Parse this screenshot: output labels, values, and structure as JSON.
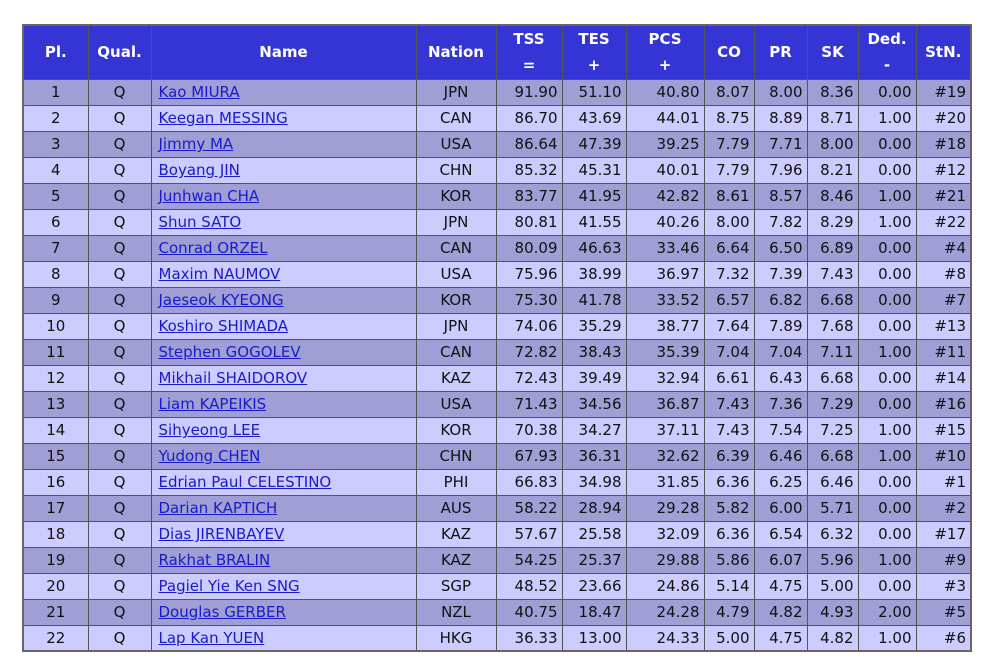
{
  "table": {
    "header": [
      [
        "Pl."
      ],
      [
        "Qual."
      ],
      [
        "Name"
      ],
      [
        "Nation"
      ],
      [
        "TSS",
        "="
      ],
      [
        "TES",
        "+"
      ],
      [
        "PCS",
        "+"
      ],
      [
        "CO"
      ],
      [
        "PR"
      ],
      [
        "SK"
      ],
      [
        "Ded.",
        "-"
      ],
      [
        "StN."
      ]
    ],
    "rows": [
      [
        "1",
        "Q",
        "Kao MIURA",
        "JPN",
        "91.90",
        "51.10",
        "40.80",
        "8.07",
        "8.00",
        "8.36",
        "0.00",
        "#19"
      ],
      [
        "2",
        "Q",
        "Keegan MESSING",
        "CAN",
        "86.70",
        "43.69",
        "44.01",
        "8.75",
        "8.89",
        "8.71",
        "1.00",
        "#20"
      ],
      [
        "3",
        "Q",
        "Jimmy MA",
        "USA",
        "86.64",
        "47.39",
        "39.25",
        "7.79",
        "7.71",
        "8.00",
        "0.00",
        "#18"
      ],
      [
        "4",
        "Q",
        "Boyang JIN",
        "CHN",
        "85.32",
        "45.31",
        "40.01",
        "7.79",
        "7.96",
        "8.21",
        "0.00",
        "#12"
      ],
      [
        "5",
        "Q",
        "Junhwan CHA",
        "KOR",
        "83.77",
        "41.95",
        "42.82",
        "8.61",
        "8.57",
        "8.46",
        "1.00",
        "#21"
      ],
      [
        "6",
        "Q",
        "Shun SATO",
        "JPN",
        "80.81",
        "41.55",
        "40.26",
        "8.00",
        "7.82",
        "8.29",
        "1.00",
        "#22"
      ],
      [
        "7",
        "Q",
        "Conrad ORZEL",
        "CAN",
        "80.09",
        "46.63",
        "33.46",
        "6.64",
        "6.50",
        "6.89",
        "0.00",
        "#4"
      ],
      [
        "8",
        "Q",
        "Maxim NAUMOV",
        "USA",
        "75.96",
        "38.99",
        "36.97",
        "7.32",
        "7.39",
        "7.43",
        "0.00",
        "#8"
      ],
      [
        "9",
        "Q",
        "Jaeseok KYEONG",
        "KOR",
        "75.30",
        "41.78",
        "33.52",
        "6.57",
        "6.82",
        "6.68",
        "0.00",
        "#7"
      ],
      [
        "10",
        "Q",
        "Koshiro SHIMADA",
        "JPN",
        "74.06",
        "35.29",
        "38.77",
        "7.64",
        "7.89",
        "7.68",
        "0.00",
        "#13"
      ],
      [
        "11",
        "Q",
        "Stephen GOGOLEV",
        "CAN",
        "72.82",
        "38.43",
        "35.39",
        "7.04",
        "7.04",
        "7.11",
        "1.00",
        "#11"
      ],
      [
        "12",
        "Q",
        "Mikhail SHAIDOROV",
        "KAZ",
        "72.43",
        "39.49",
        "32.94",
        "6.61",
        "6.43",
        "6.68",
        "0.00",
        "#14"
      ],
      [
        "13",
        "Q",
        "Liam KAPEIKIS",
        "USA",
        "71.43",
        "34.56",
        "36.87",
        "7.43",
        "7.36",
        "7.29",
        "0.00",
        "#16"
      ],
      [
        "14",
        "Q",
        "Sihyeong LEE",
        "KOR",
        "70.38",
        "34.27",
        "37.11",
        "7.43",
        "7.54",
        "7.25",
        "1.00",
        "#15"
      ],
      [
        "15",
        "Q",
        "Yudong CHEN",
        "CHN",
        "67.93",
        "36.31",
        "32.62",
        "6.39",
        "6.46",
        "6.68",
        "1.00",
        "#10"
      ],
      [
        "16",
        "Q",
        "Edrian Paul CELESTINO",
        "PHI",
        "66.83",
        "34.98",
        "31.85",
        "6.36",
        "6.25",
        "6.46",
        "0.00",
        "#1"
      ],
      [
        "17",
        "Q",
        "Darian KAPTICH",
        "AUS",
        "58.22",
        "28.94",
        "29.28",
        "5.82",
        "6.00",
        "5.71",
        "0.00",
        "#2"
      ],
      [
        "18",
        "Q",
        "Dias JIRENBAYEV",
        "KAZ",
        "57.67",
        "25.58",
        "32.09",
        "6.36",
        "6.54",
        "6.32",
        "0.00",
        "#17"
      ],
      [
        "19",
        "Q",
        "Rakhat BRALIN",
        "KAZ",
        "54.25",
        "25.37",
        "29.88",
        "5.86",
        "6.07",
        "5.96",
        "1.00",
        "#9"
      ],
      [
        "20",
        "Q",
        "Pagiel Yie Ken SNG",
        "SGP",
        "48.52",
        "23.66",
        "24.86",
        "5.14",
        "4.75",
        "5.00",
        "0.00",
        "#3"
      ],
      [
        "21",
        "Q",
        "Douglas GERBER",
        "NZL",
        "40.75",
        "18.47",
        "24.28",
        "4.79",
        "4.82",
        "4.93",
        "2.00",
        "#5"
      ],
      [
        "22",
        "Q",
        "Lap Kan YUEN",
        "HKG",
        "36.33",
        "13.00",
        "24.33",
        "5.00",
        "4.75",
        "4.82",
        "1.00",
        "#6"
      ]
    ]
  }
}
